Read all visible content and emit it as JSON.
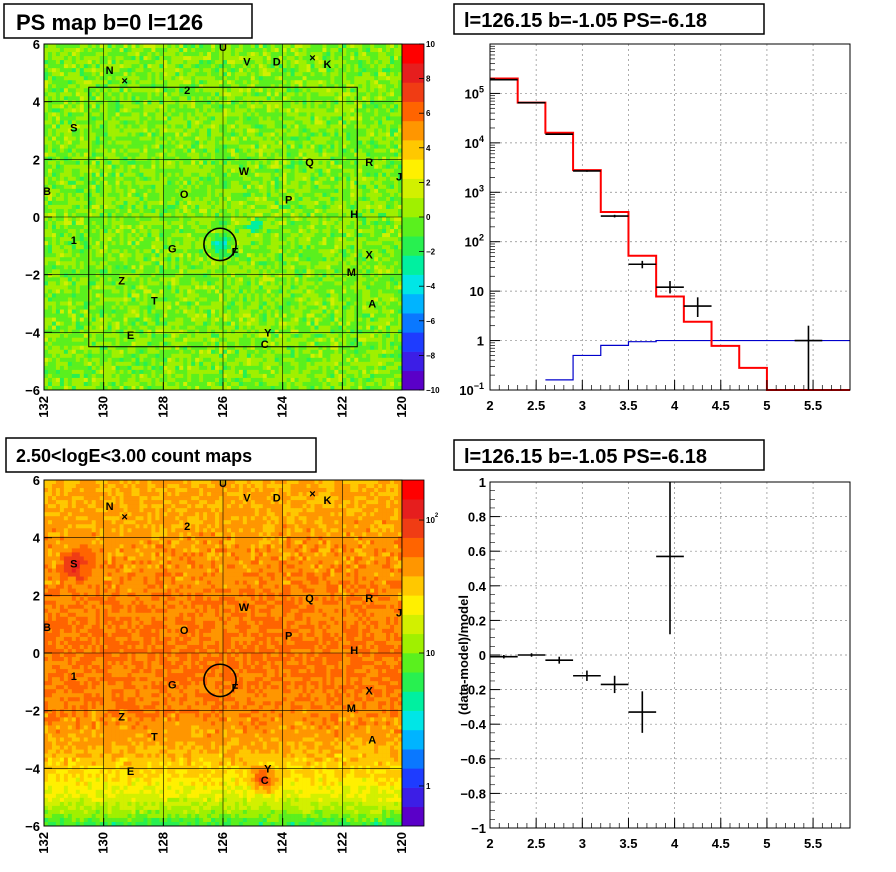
{
  "chart_data": [
    {
      "type": "heatmap",
      "title": "PS map b=0 l=126",
      "x_range": [
        132,
        120
      ],
      "y_range": [
        -6,
        6
      ],
      "x_ticks": [
        "132",
        "130",
        "128",
        "126",
        "124",
        "122",
        "120"
      ],
      "y_ticks": [
        "6",
        "4",
        "2",
        "0",
        "−2",
        "−4",
        "−6"
      ],
      "z_range": [
        -10,
        10
      ],
      "z_ticks": [
        "10",
        "8",
        "6",
        "4",
        "2",
        "0",
        "−2",
        "−4",
        "−6",
        "−8",
        "−10"
      ],
      "box": {
        "l": [
          130.5,
          121.5
        ],
        "b": [
          -4.5,
          4.5
        ]
      },
      "circle": {
        "l": 126.1,
        "b": -0.95,
        "r": 0.5
      },
      "sources": [
        {
          "label": "U",
          "l": 126.0,
          "b": 5.9
        },
        {
          "label": "V",
          "l": 125.2,
          "b": 5.4
        },
        {
          "label": "D",
          "l": 124.2,
          "b": 5.4
        },
        {
          "label": "K",
          "l": 122.5,
          "b": 5.3
        },
        {
          "label": "N",
          "l": 129.8,
          "b": 5.1
        },
        {
          "label": "2",
          "l": 127.2,
          "b": 4.4
        },
        {
          "label": "S",
          "l": 131.0,
          "b": 3.1
        },
        {
          "label": "Q",
          "l": 123.1,
          "b": 1.9
        },
        {
          "label": "R",
          "l": 121.1,
          "b": 1.9
        },
        {
          "label": "J",
          "l": 120.1,
          "b": 1.4
        },
        {
          "label": "W",
          "l": 125.3,
          "b": 1.6
        },
        {
          "label": "B",
          "l": 131.9,
          "b": 0.9
        },
        {
          "label": "O",
          "l": 127.3,
          "b": 0.8
        },
        {
          "label": "P",
          "l": 123.8,
          "b": 0.6
        },
        {
          "label": "H",
          "l": 121.6,
          "b": 0.1
        },
        {
          "label": "1",
          "l": 131.0,
          "b": -0.8
        },
        {
          "label": "G",
          "l": 127.7,
          "b": -1.1
        },
        {
          "label": "F",
          "l": 125.6,
          "b": -1.2
        },
        {
          "label": "X",
          "l": 121.1,
          "b": -1.3
        },
        {
          "label": "M",
          "l": 121.7,
          "b": -1.9
        },
        {
          "label": "Z",
          "l": 129.4,
          "b": -2.2
        },
        {
          "label": "T",
          "l": 128.3,
          "b": -2.9
        },
        {
          "label": "A",
          "l": 121.0,
          "b": -3.0
        },
        {
          "label": "E",
          "l": 129.1,
          "b": -4.1
        },
        {
          "label": "Y",
          "l": 124.5,
          "b": -4.0
        },
        {
          "label": "C",
          "l": 124.6,
          "b": -4.4
        }
      ],
      "cross_markers": [
        {
          "l": 129.3,
          "b": 4.7
        },
        {
          "l": 123.0,
          "b": 5.5
        }
      ]
    },
    {
      "type": "line",
      "title": "l=126.15 b=-1.05 PS=-6.18",
      "x_range": [
        2,
        5.9
      ],
      "y_range": [
        0.1,
        1000000
      ],
      "y_scale": "log",
      "grid": true,
      "x_ticks": [
        "2",
        "2.5",
        "3",
        "3.5",
        "4",
        "4.5",
        "5",
        "5.5"
      ],
      "y_ticks": [
        {
          "m": "10",
          "e": "−1",
          "v": 0.1
        },
        {
          "m": "1",
          "e": "",
          "v": 1
        },
        {
          "m": "10",
          "e": "",
          "v": 10
        },
        {
          "m": "10",
          "e": "2",
          "v": 100
        },
        {
          "m": "10",
          "e": "3",
          "v": 1000
        },
        {
          "m": "10",
          "e": "4",
          "v": 10000
        },
        {
          "m": "10",
          "e": "5",
          "v": 100000
        }
      ],
      "model_red": {
        "edges": [
          2,
          2.3,
          2.6,
          2.9,
          3.2,
          3.5,
          3.8,
          4.1,
          4.4,
          4.7,
          5.0,
          5.9
        ],
        "values": [
          200000,
          65000,
          16000,
          2800,
          400,
          52,
          7.8,
          2.4,
          0.78,
          0.28,
          0.1
        ]
      },
      "model_blue": {
        "edges": [
          2.6,
          2.9,
          3.2,
          3.5,
          3.8,
          4.1,
          5.9
        ],
        "values": [
          0.16,
          0.5,
          0.8,
          0.95,
          1.0,
          1.0
        ]
      },
      "data_points": [
        {
          "x": 2.15,
          "y": 190000,
          "xerr": 0.15,
          "ylo": 185000,
          "yhi": 195000
        },
        {
          "x": 2.45,
          "y": 65000,
          "xerr": 0.15,
          "ylo": 63000,
          "yhi": 67000
        },
        {
          "x": 2.75,
          "y": 15000,
          "xerr": 0.15,
          "ylo": 14500,
          "yhi": 15500
        },
        {
          "x": 3.05,
          "y": 2700,
          "xerr": 0.15,
          "ylo": 2600,
          "yhi": 2800
        },
        {
          "x": 3.35,
          "y": 330,
          "xerr": 0.15,
          "ylo": 310,
          "yhi": 350
        },
        {
          "x": 3.65,
          "y": 35,
          "xerr": 0.15,
          "ylo": 29,
          "yhi": 41
        },
        {
          "x": 3.95,
          "y": 12,
          "xerr": 0.15,
          "ylo": 9,
          "yhi": 16
        },
        {
          "x": 4.25,
          "y": 5,
          "xerr": 0.15,
          "ylo": 3,
          "yhi": 7.5
        },
        {
          "x": 5.45,
          "y": 1,
          "xerr": 0.15,
          "ylo": 0.1,
          "yhi": 2
        }
      ]
    },
    {
      "type": "heatmap",
      "title": "2.50<logE<3.00 count maps",
      "x_range": [
        132,
        120
      ],
      "y_range": [
        -6,
        6
      ],
      "x_ticks": [
        "132",
        "130",
        "128",
        "126",
        "124",
        "122",
        "120"
      ],
      "y_ticks": [
        "6",
        "4",
        "2",
        "0",
        "−2",
        "−4",
        "−6"
      ],
      "z_scale": "log",
      "z_range": [
        0.5,
        200
      ],
      "z_ticks": [
        {
          "m": "10",
          "e": "2",
          "v": 100
        },
        {
          "m": "10",
          "e": "",
          "v": 10
        },
        {
          "m": "1",
          "e": "",
          "v": 1
        }
      ],
      "circle": {
        "l": 126.1,
        "b": -0.95,
        "r": 0.5
      }
    },
    {
      "type": "scatter",
      "title": "l=126.15 b=-1.05 PS=-6.18",
      "ylabel": "(data-model)/model",
      "x_range": [
        2,
        5.9
      ],
      "y_range": [
        -1,
        1
      ],
      "grid": true,
      "x_ticks": [
        "2",
        "2.5",
        "3",
        "3.5",
        "4",
        "4.5",
        "5",
        "5.5"
      ],
      "y_ticks": [
        "1",
        "0.8",
        "0.6",
        "0.4",
        "0.2",
        "0",
        "−0.2",
        "−0.4",
        "−0.6",
        "−0.8",
        "−1"
      ],
      "points": [
        {
          "x": 2.15,
          "y": -0.01,
          "xerr": 0.15,
          "yerr": 0.01
        },
        {
          "x": 2.45,
          "y": 0.0,
          "xerr": 0.15,
          "yerr": 0.01
        },
        {
          "x": 2.75,
          "y": -0.03,
          "xerr": 0.15,
          "yerr": 0.02
        },
        {
          "x": 3.05,
          "y": -0.12,
          "xerr": 0.15,
          "yerr": 0.03
        },
        {
          "x": 3.35,
          "y": -0.17,
          "xerr": 0.15,
          "yerr": 0.05
        },
        {
          "x": 3.65,
          "y": -0.33,
          "xerr": 0.15,
          "yerr": 0.12
        },
        {
          "x": 3.95,
          "y": 0.57,
          "xerr": 0.15,
          "yerr": 0.45
        }
      ]
    }
  ]
}
